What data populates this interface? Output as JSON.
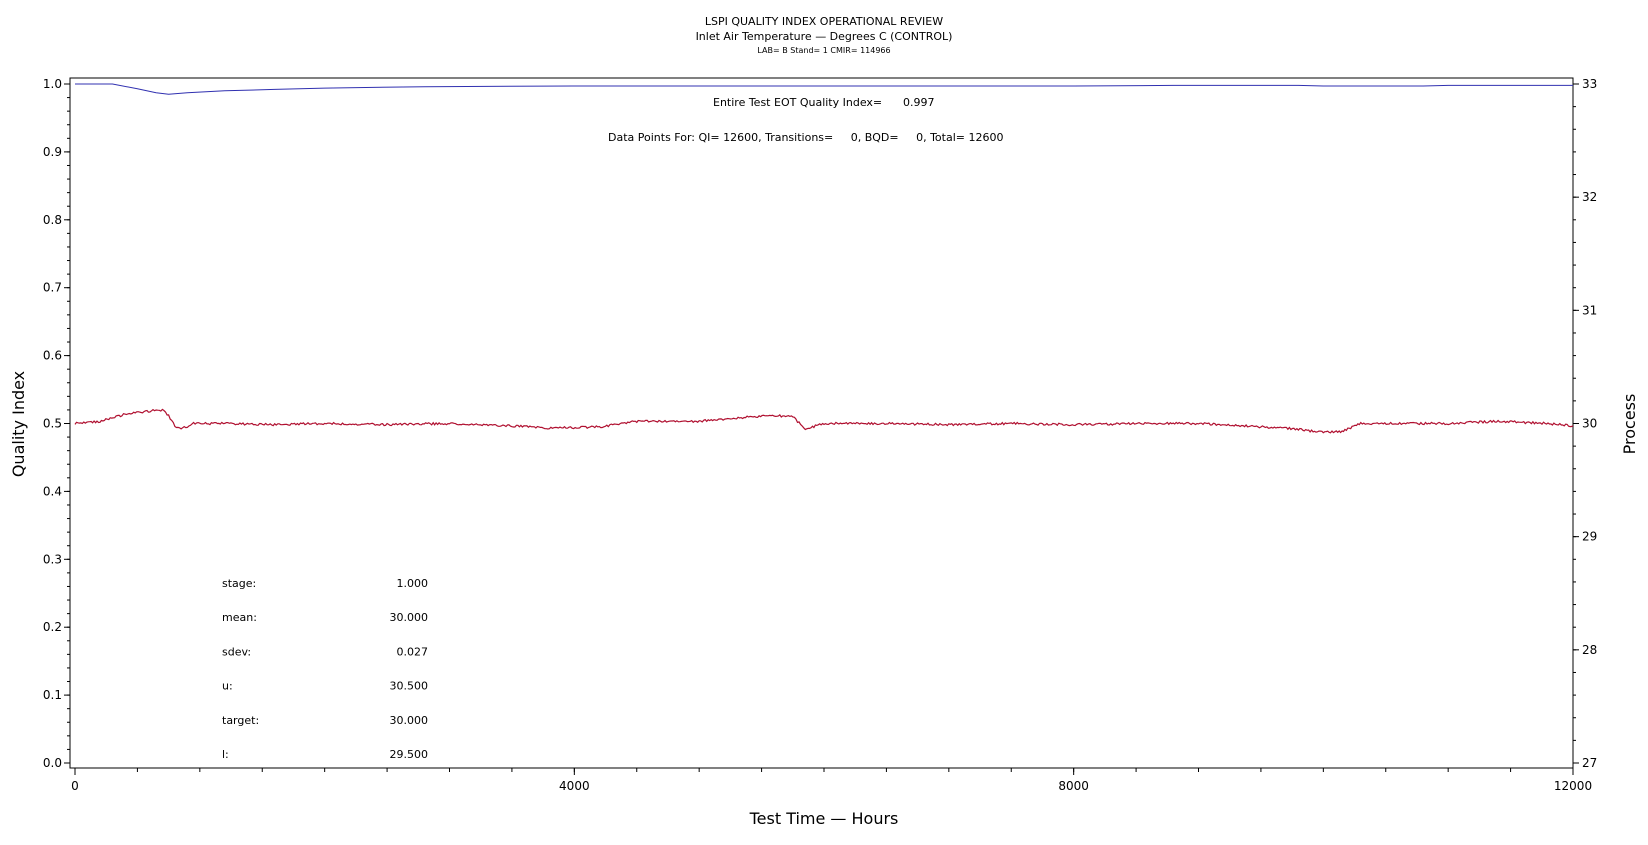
{
  "chart_data": {
    "type": "line",
    "title": "LSPI QUALITY INDEX OPERATIONAL REVIEW",
    "subtitle": "Inlet Air Temperature — Degrees C (CONTROL)",
    "subtitle2": "LAB= B Stand= 1 CMIR= 114966",
    "xlabel": "Test Time — Hours",
    "ylabel": "Quality Index",
    "y2label": "Process",
    "xlim": [
      0,
      12000
    ],
    "ylim": [
      0,
      1
    ],
    "y2lim": [
      27,
      33
    ],
    "x_ticks": [
      0,
      4000,
      8000,
      12000
    ],
    "y_ticks": [
      0.0,
      0.1,
      0.2,
      0.3,
      0.4,
      0.5,
      0.6,
      0.7,
      0.8,
      0.9,
      1.0
    ],
    "y2_ticks": [
      27,
      28,
      29,
      30,
      31,
      32,
      33
    ],
    "grid": false,
    "annotations": {
      "eot_label": "Entire Test EOT Quality Index=",
      "eot_value": "0.997",
      "data_points": "Data Points For: QI= 12600, Transitions=     0, BQD=     0, Total= 12600"
    },
    "stats": [
      {
        "label": "stage:",
        "value": "1.000"
      },
      {
        "label": "mean:",
        "value": "30.000"
      },
      {
        "label": "sdev:",
        "value": "0.027"
      },
      {
        "label": "u:",
        "value": "30.500"
      },
      {
        "label": "target:",
        "value": "30.000"
      },
      {
        "label": "l:",
        "value": "29.500"
      }
    ],
    "series": [
      {
        "axis": "left",
        "color": "#3030b0",
        "x": [
          0,
          300,
          500,
          650,
          750,
          900,
          1200,
          1600,
          2000,
          2800,
          4000,
          8000,
          8800,
          9800,
          10000,
          10800,
          11000,
          12000
        ],
        "y": [
          1.0,
          1.0,
          0.993,
          0.987,
          0.985,
          0.987,
          0.99,
          0.992,
          0.994,
          0.996,
          0.997,
          0.997,
          0.998,
          0.998,
          0.997,
          0.997,
          0.998,
          0.998
        ]
      },
      {
        "axis": "right",
        "color": "#b01030",
        "x": [
          0,
          200,
          400,
          600,
          700,
          750,
          800,
          850,
          950,
          1200,
          1600,
          2000,
          2500,
          3000,
          3500,
          3800,
          4200,
          4500,
          5000,
          5300,
          5600,
          5750,
          5850,
          6000,
          6500,
          7000,
          7500,
          8000,
          8500,
          9000,
          9500,
          9800,
          10000,
          10150,
          10300,
          10600,
          11000,
          11400,
          11800,
          12000
        ],
        "y": [
          30.0,
          30.02,
          30.08,
          30.11,
          30.12,
          30.07,
          29.98,
          29.95,
          30.0,
          30.0,
          29.99,
          30.0,
          29.99,
          30.0,
          29.98,
          29.96,
          29.97,
          30.02,
          30.02,
          30.05,
          30.07,
          30.06,
          29.95,
          30.0,
          30.0,
          29.99,
          30.0,
          29.99,
          30.0,
          30.0,
          29.97,
          29.95,
          29.92,
          29.93,
          30.0,
          30.0,
          30.0,
          30.02,
          30.0,
          29.98
        ]
      }
    ]
  }
}
